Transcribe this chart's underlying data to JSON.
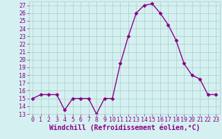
{
  "x": [
    0,
    1,
    2,
    3,
    4,
    5,
    6,
    7,
    8,
    9,
    10,
    11,
    12,
    13,
    14,
    15,
    16,
    17,
    18,
    19,
    20,
    21,
    22,
    23
  ],
  "y": [
    15,
    15.5,
    15.5,
    15.5,
    13.5,
    15,
    15,
    15,
    13,
    15,
    15,
    19.5,
    23,
    26,
    27,
    27.2,
    26,
    24.5,
    22.5,
    19.5,
    18,
    17.5,
    15.5,
    15.5
  ],
  "line_color": "#880088",
  "marker_color": "#880088",
  "bg_color": "#d5f0f0",
  "grid_color": "#aacccc",
  "xlabel": "Windchill (Refroidissement éolien,°C)",
  "ylim": [
    13,
    27.5
  ],
  "xlim": [
    -0.5,
    23.5
  ],
  "yticks": [
    13,
    14,
    15,
    16,
    17,
    18,
    19,
    20,
    21,
    22,
    23,
    24,
    25,
    26,
    27
  ],
  "xticks": [
    0,
    1,
    2,
    3,
    4,
    5,
    6,
    7,
    8,
    9,
    10,
    11,
    12,
    13,
    14,
    15,
    16,
    17,
    18,
    19,
    20,
    21,
    22,
    23
  ],
  "tick_color": "#880088",
  "label_color": "#880088",
  "font_size": 6,
  "xlabel_fontsize": 7,
  "line_width": 1.0,
  "marker_size": 2.5
}
